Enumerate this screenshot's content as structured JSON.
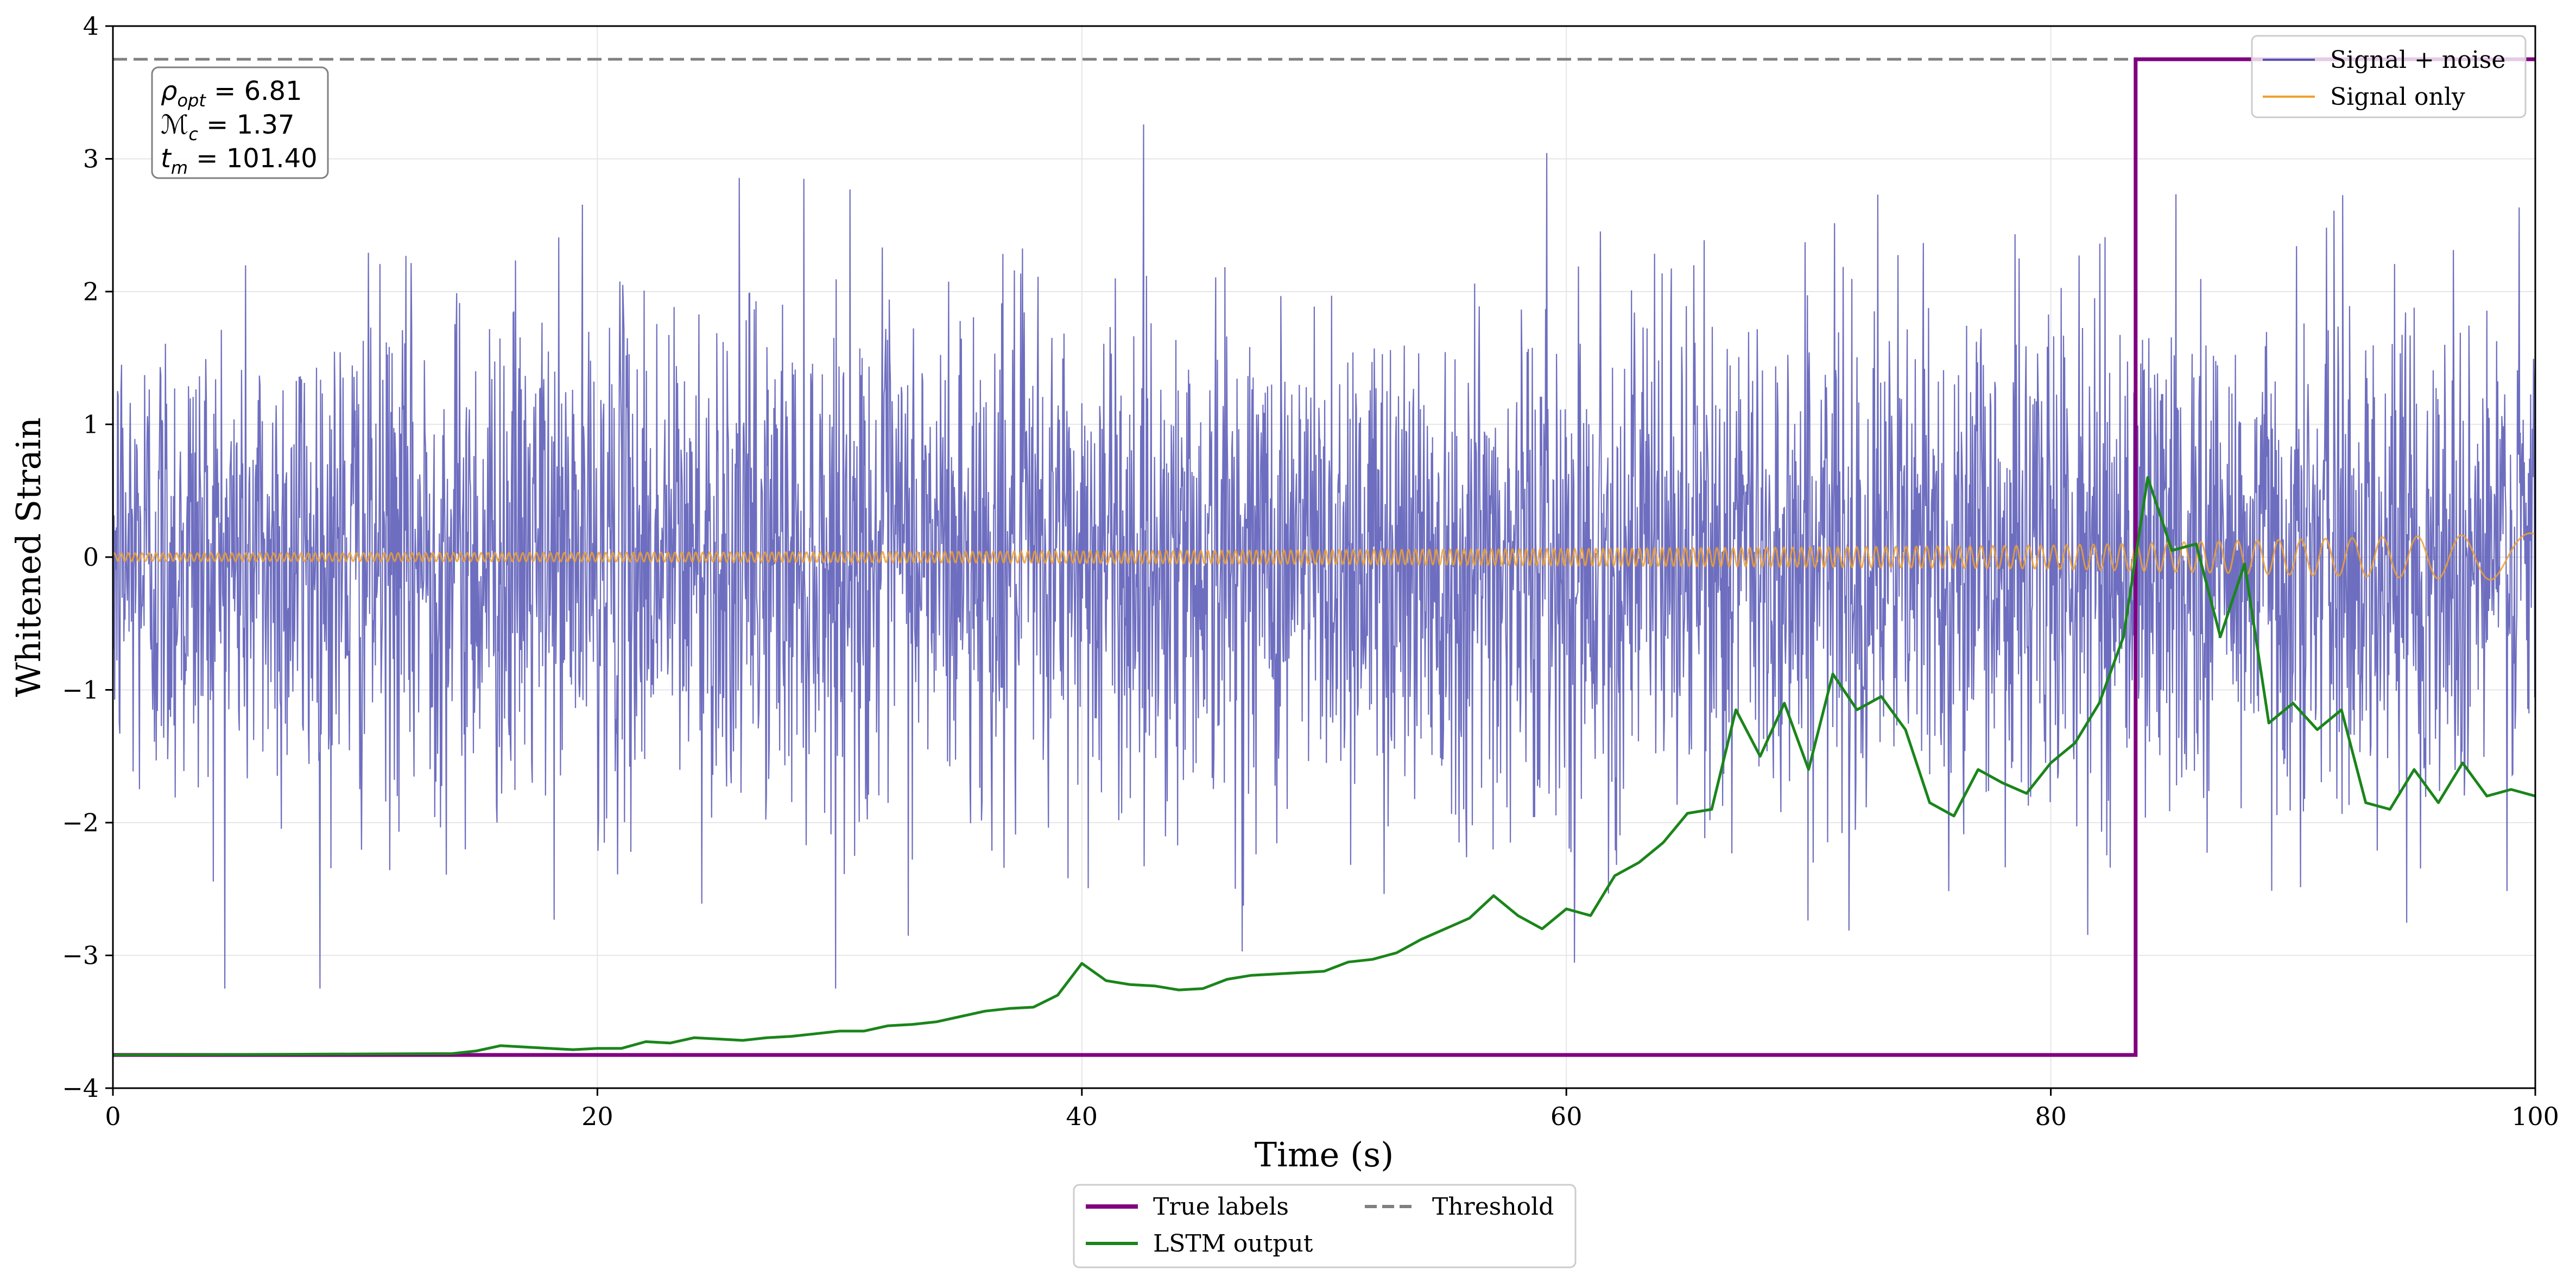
{
  "chart_data": {
    "type": "line",
    "title": "",
    "xlabel": "Time (s)",
    "ylabel": "Whitened Strain",
    "xlim": [
      0,
      100
    ],
    "ylim": [
      -4,
      4
    ],
    "grid": true,
    "xticks": [
      0,
      20,
      40,
      60,
      80,
      100
    ],
    "yticks": [
      -4,
      -3,
      -2,
      -1,
      0,
      1,
      2,
      3,
      4
    ],
    "xtick_labels": [
      "0",
      "20",
      "40",
      "60",
      "80",
      "100"
    ],
    "ytick_labels": [
      "−4",
      "−3",
      "−2",
      "−1",
      "0",
      "1",
      "2",
      "3",
      "4"
    ],
    "threshold": 3.75,
    "label_change_time": 83.5,
    "label_low": -3.75,
    "label_high": 3.75,
    "noise_amplitude": 0.95,
    "noise_peak_max": 3.4,
    "noise_peak_min": -3.25,
    "series": [
      {
        "name": "Signal + noise",
        "color": "#5555b5",
        "style": "solid",
        "description": "dense noisy trace spanning roughly -3.2 to 3.4"
      },
      {
        "name": "Signal only",
        "color": "#f0a030",
        "style": "solid",
        "description": "chirp signal with amplitude rising from ~0.03 to ~0.18, frequency decreasing after 83 s"
      },
      {
        "name": "LSTM output",
        "color": "#1a851a",
        "style": "solid",
        "x": [
          0,
          14,
          15,
          16,
          17,
          18,
          19,
          20,
          21,
          22,
          23,
          24,
          25,
          26,
          27,
          28,
          29,
          30,
          31,
          32,
          33,
          34,
          35,
          36,
          37,
          38,
          39,
          40,
          41,
          42,
          43,
          44,
          45,
          46,
          47,
          48,
          49,
          50,
          51,
          52,
          53,
          54,
          55,
          56,
          57,
          58,
          59,
          60,
          61,
          62,
          63,
          64,
          65,
          66,
          67,
          68,
          69,
          70,
          71,
          72,
          73,
          74,
          75,
          76,
          77,
          78,
          79,
          80,
          81,
          82,
          83,
          84,
          85,
          86,
          87,
          88,
          89,
          90,
          91,
          92,
          93,
          94,
          95,
          96,
          97,
          98,
          99,
          100
        ],
        "y": [
          -3.75,
          -3.74,
          -3.72,
          -3.68,
          -3.69,
          -3.7,
          -3.71,
          -3.7,
          -3.7,
          -3.65,
          -3.66,
          -3.62,
          -3.63,
          -3.64,
          -3.62,
          -3.61,
          -3.59,
          -3.57,
          -3.57,
          -3.53,
          -3.52,
          -3.5,
          -3.46,
          -3.42,
          -3.4,
          -3.39,
          -3.3,
          -3.06,
          -3.19,
          -3.22,
          -3.23,
          -3.26,
          -3.25,
          -3.18,
          -3.15,
          -3.14,
          -3.13,
          -3.12,
          -3.05,
          -3.03,
          -2.98,
          -2.88,
          -2.8,
          -2.72,
          -2.55,
          -2.7,
          -2.8,
          -2.65,
          -2.7,
          -2.4,
          -2.3,
          -2.15,
          -1.93,
          -1.9,
          -1.15,
          -1.5,
          -1.1,
          -1.6,
          -0.88,
          -1.15,
          -1.05,
          -1.3,
          -1.85,
          -1.95,
          -1.6,
          -1.7,
          -1.78,
          -1.55,
          -1.4,
          -1.1,
          -0.6,
          0.6,
          0.05,
          0.1,
          -0.6,
          -0.05,
          -1.25,
          -1.1,
          -1.3,
          -1.15,
          -1.85,
          -1.9,
          -1.6,
          -1.85,
          -1.55,
          -1.8,
          -1.75,
          -1.8
        ]
      },
      {
        "name": "True labels",
        "color": "#800080",
        "style": "solid",
        "x": [
          0,
          83.5,
          83.5,
          100
        ],
        "y": [
          -3.75,
          -3.75,
          3.75,
          3.75
        ]
      },
      {
        "name": "Threshold",
        "color": "#808080",
        "style": "dashed",
        "x": [
          0,
          100
        ],
        "y": [
          3.75,
          3.75
        ]
      }
    ],
    "upper_legend": {
      "placement": "top-right",
      "entries": [
        "Signal + noise",
        "Signal only"
      ]
    },
    "lower_legend": {
      "placement": "bottom-center",
      "entries": [
        "True labels",
        "LSTM output",
        "Threshold"
      ]
    },
    "annotation": {
      "placement": "top-left",
      "lines": [
        {
          "symbol": "ρ",
          "subscript": "opt",
          "value": " = 6.81"
        },
        {
          "symbol": "ℳ",
          "subscript": "c",
          "value": " = 1.37"
        },
        {
          "symbol": "t",
          "subscript": "m",
          "value": " = 101.40"
        }
      ]
    }
  }
}
